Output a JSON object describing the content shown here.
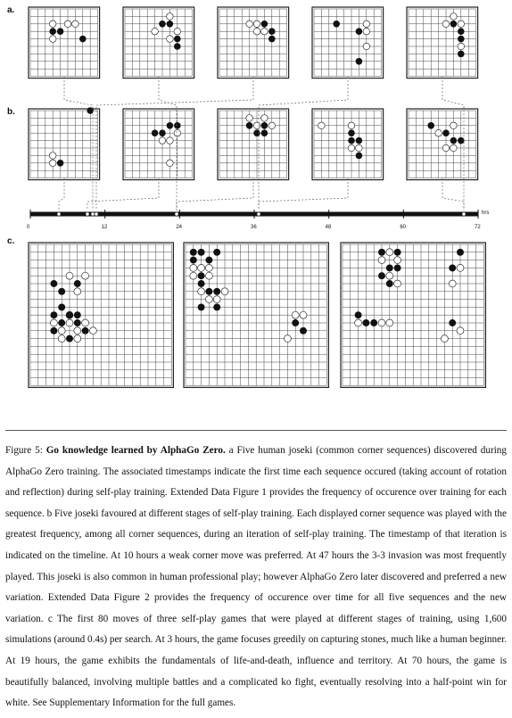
{
  "panels": {
    "a": "a.",
    "b": "b.",
    "c": "c."
  },
  "timeline": {
    "ticks": [
      "0",
      "12",
      "24",
      "36",
      "48",
      "60",
      "72"
    ],
    "unit": "hrs"
  },
  "row_a": [
    {
      "black": [
        [
          3,
          3
        ],
        [
          4,
          3
        ],
        [
          7,
          4
        ]
      ],
      "white": [
        [
          3,
          2
        ],
        [
          5,
          2
        ],
        [
          6,
          2
        ],
        [
          3,
          4
        ]
      ]
    },
    {
      "black": [
        [
          5,
          2
        ],
        [
          6,
          2
        ],
        [
          7,
          4
        ],
        [
          7,
          5
        ]
      ],
      "white": [
        [
          4,
          3
        ],
        [
          6,
          1
        ],
        [
          7,
          3
        ],
        [
          6,
          4
        ]
      ]
    },
    {
      "black": [
        [
          6,
          2
        ],
        [
          7,
          3
        ],
        [
          7,
          4
        ]
      ],
      "white": [
        [
          5,
          2
        ],
        [
          5,
          3
        ],
        [
          6,
          3
        ],
        [
          4,
          2
        ]
      ]
    },
    {
      "black": [
        [
          3,
          2
        ],
        [
          6,
          3
        ],
        [
          6,
          7
        ]
      ],
      "white": [
        [
          7,
          2
        ],
        [
          7,
          5
        ],
        [
          7,
          3
        ]
      ]
    },
    {
      "black": [
        [
          6,
          2
        ],
        [
          7,
          3
        ],
        [
          7,
          4
        ],
        [
          7,
          6
        ]
      ],
      "white": [
        [
          5,
          2
        ],
        [
          6,
          1
        ],
        [
          7,
          5
        ],
        [
          7,
          2
        ]
      ]
    }
  ],
  "row_b": [
    {
      "black": [
        [
          8,
          0
        ],
        [
          4,
          7
        ]
      ],
      "white": [
        [
          3,
          6
        ],
        [
          3,
          7
        ]
      ]
    },
    {
      "black": [
        [
          4,
          3
        ],
        [
          5,
          3
        ],
        [
          6,
          2
        ],
        [
          7,
          2
        ]
      ],
      "white": [
        [
          5,
          4
        ],
        [
          6,
          4
        ],
        [
          7,
          3
        ],
        [
          6,
          7
        ]
      ]
    },
    {
      "black": [
        [
          4,
          2
        ],
        [
          6,
          2
        ],
        [
          5,
          3
        ],
        [
          6,
          3
        ]
      ],
      "white": [
        [
          4,
          1
        ],
        [
          5,
          2
        ],
        [
          6,
          1
        ],
        [
          7,
          2
        ]
      ]
    },
    {
      "black": [
        [
          5,
          3
        ],
        [
          5,
          4
        ],
        [
          6,
          4
        ],
        [
          6,
          6
        ]
      ],
      "white": [
        [
          5,
          2
        ],
        [
          6,
          5
        ],
        [
          5,
          5
        ],
        [
          1,
          2
        ]
      ]
    },
    {
      "black": [
        [
          3,
          2
        ],
        [
          5,
          3
        ],
        [
          6,
          4
        ],
        [
          7,
          4
        ]
      ],
      "white": [
        [
          4,
          3
        ],
        [
          6,
          2
        ],
        [
          5,
          5
        ],
        [
          6,
          5
        ]
      ]
    }
  ],
  "row_c": [
    {
      "black": [
        [
          3,
          5
        ],
        [
          4,
          6
        ],
        [
          6,
          5
        ],
        [
          3,
          9
        ],
        [
          4,
          8
        ],
        [
          5,
          9
        ],
        [
          6,
          9
        ],
        [
          4,
          10
        ],
        [
          6,
          10
        ],
        [
          3,
          11
        ],
        [
          7,
          11
        ],
        [
          5,
          12
        ]
      ],
      "white": [
        [
          5,
          4
        ],
        [
          7,
          4
        ],
        [
          6,
          6
        ],
        [
          5,
          9
        ],
        [
          3,
          10
        ],
        [
          5,
          10
        ],
        [
          7,
          10
        ],
        [
          4,
          11
        ],
        [
          6,
          11
        ],
        [
          8,
          11
        ],
        [
          4,
          12
        ],
        [
          6,
          12
        ]
      ]
    },
    {
      "black": [
        [
          1,
          1
        ],
        [
          2,
          1
        ],
        [
          4,
          1
        ],
        [
          1,
          2
        ],
        [
          3,
          2
        ],
        [
          2,
          4
        ],
        [
          2,
          5
        ],
        [
          3,
          6
        ],
        [
          4,
          6
        ],
        [
          2,
          8
        ],
        [
          4,
          8
        ],
        [
          14,
          10
        ],
        [
          15,
          11
        ]
      ],
      "white": [
        [
          1,
          3
        ],
        [
          2,
          3
        ],
        [
          3,
          3
        ],
        [
          1,
          4
        ],
        [
          3,
          4
        ],
        [
          2,
          6
        ],
        [
          5,
          6
        ],
        [
          3,
          7
        ],
        [
          4,
          7
        ],
        [
          14,
          9
        ],
        [
          15,
          9
        ],
        [
          13,
          12
        ]
      ]
    },
    {
      "black": [
        [
          5,
          1
        ],
        [
          7,
          1
        ],
        [
          6,
          3
        ],
        [
          7,
          3
        ],
        [
          5,
          4
        ],
        [
          6,
          5
        ],
        [
          15,
          1
        ],
        [
          14,
          3
        ],
        [
          2,
          9
        ],
        [
          3,
          10
        ],
        [
          4,
          10
        ],
        [
          14,
          10
        ]
      ],
      "white": [
        [
          6,
          1
        ],
        [
          5,
          2
        ],
        [
          7,
          2
        ],
        [
          6,
          4
        ],
        [
          7,
          5
        ],
        [
          15,
          3
        ],
        [
          14,
          5
        ],
        [
          2,
          10
        ],
        [
          5,
          10
        ],
        [
          6,
          10
        ],
        [
          15,
          11
        ],
        [
          13,
          12
        ]
      ]
    }
  ],
  "caption": {
    "figure_label": "Figure 5:",
    "title": "Go knowledge learned by AlphaGo Zero.",
    "text": "a Five human joseki (common corner sequences) discovered during AlphaGo Zero training. The associated timestamps indicate the first time each sequence occured (taking account of rotation and reflection) during self-play training. Extended Data Figure 1 provides the frequency of occurence over training for each sequence. b Five joseki favoured at different stages of self-play training. Each displayed corner sequence was played with the greatest frequency, among all corner sequences, during an iteration of self-play training. The timestamp of that iteration is indicated on the timeline. At 10 hours a weak corner move was preferred. At 47 hours the 3-3 invasion was most frequently played. This joseki is also common in human professional play; however AlphaGo Zero later discovered and preferred a new variation. Extended Data Figure 2 provides the frequency of occurence over time for all five sequences and the new variation. c The first 80 moves of three self-play games that were played at different stages of training, using 1,600 simulations (around 0.4s) per search. At 3 hours, the game focuses greedily on capturing stones, much like a human beginner. At 19 hours, the game exhibits the fundamentals of life-and-death, influence and territory. At 70 hours, the game is beautifully balanced, involving multiple battles and a complicated ko fight, eventually resolving into a half-point win for white. See Supplementary Information for the full games."
  },
  "colors": {
    "stone_black": "#111111",
    "stone_white": "#ffffff",
    "grid": "#444444"
  }
}
